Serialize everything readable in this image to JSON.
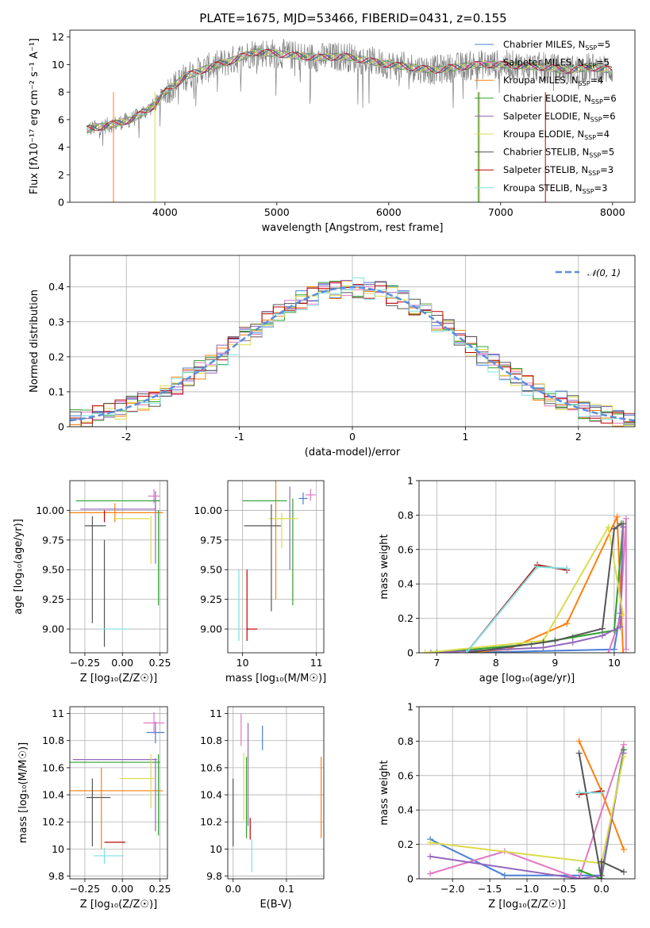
{
  "figure": {
    "title": "PLATE=1675, MJD=53466, FIBERID=0431, z=0.155"
  },
  "colors": {
    "Chabrier MILES": "#4a7fd4",
    "Salpeter MILES": "#e377c2",
    "Kroupa MILES": "#ff7f0e",
    "Chabrier ELODIE": "#2ca02c",
    "Salpeter ELODIE": "#9467bd",
    "Kroupa ELODIE": "#dbdb4d",
    "Chabrier STELIB": "#555555",
    "Salpeter STELIB": "#c00000",
    "Kroupa STELIB": "#7fdfdf",
    "data": "#808080",
    "gaussian": "#5b8dd9"
  },
  "chart_data": [
    {
      "id": "spectrum",
      "type": "line",
      "title": "PLATE=1675, MJD=53466, FIBERID=0431, z=0.155",
      "xlabel": "wavelength [Angstrom, rest frame]",
      "ylabel": "Flux [fλ10⁻¹⁷ erg cm⁻² s⁻¹ A⁻¹]",
      "xlim": [
        3150,
        8200
      ],
      "ylim": [
        0,
        12.5
      ],
      "xticks": [
        4000,
        5000,
        6000,
        7000,
        8000
      ],
      "yticks": [
        0,
        2,
        4,
        6,
        8,
        10,
        12
      ],
      "legend_position": "right",
      "legend": [
        "Chabrier MILES, N_SSP=5",
        "Salpeter MILES, N_SSP=5",
        "Kroupa MILES, N_SSP=4",
        "Chabrier ELODIE, N_SSP=6",
        "Salpeter ELODIE, N_SSP=6",
        "Kroupa ELODIE, N_SSP=4",
        "Chabrier STELIB, N_SSP=5",
        "Salpeter STELIB, N_SSP=3",
        "Kroupa STELIB, N_SSP=3"
      ],
      "continuum_x": [
        3300,
        3500,
        3700,
        3900,
        4000,
        4200,
        4400,
        4600,
        4800,
        5000,
        5200,
        5400,
        5600,
        5800,
        6000,
        6200,
        6400,
        6600,
        6800,
        7000,
        7200,
        7400,
        7600,
        7800,
        8000
      ],
      "continuum_y": [
        5.3,
        5.6,
        6.0,
        7.0,
        8.0,
        9.2,
        9.8,
        10.3,
        10.9,
        10.8,
        10.6,
        10.5,
        10.6,
        10.3,
        10.0,
        9.8,
        9.6,
        9.8,
        10.0,
        10.0,
        9.9,
        9.8,
        9.6,
        9.8,
        9.6
      ]
    },
    {
      "id": "residuals",
      "type": "area",
      "xlabel": "(data-model)/error",
      "ylabel": "Normed distribution",
      "xlim": [
        -2.5,
        2.5
      ],
      "ylim": [
        0,
        0.49
      ],
      "xticks": [
        -2,
        -1,
        0,
        1,
        2
      ],
      "yticks": [
        0.0,
        0.1,
        0.2,
        0.3,
        0.4
      ],
      "grid": true,
      "legend_position": "top-right",
      "gaussian_label": "𝒩(0, 1)",
      "bin_width": 0.1
    },
    {
      "id": "age-vs-Z",
      "type": "scatter",
      "xlabel": "Z [log₁₀(Z/Z☉)]",
      "ylabel": "age  [log₁₀(age/yr)]",
      "xlim": [
        -0.35,
        0.3
      ],
      "ylim": [
        8.8,
        10.25
      ],
      "xticks": [
        -0.25,
        0.0,
        0.25
      ],
      "xticklabels": [
        "−0.25",
        "0.00",
        "0.25"
      ],
      "yticks": [
        9.0,
        9.25,
        9.5,
        9.75,
        10.0
      ],
      "yticklabels": [
        "9.00",
        "9.25",
        "9.50",
        "9.75",
        "10.00"
      ],
      "grid": true,
      "points": [
        {
          "s": "Chabrier MILES",
          "x": 0.22,
          "y": 10.08,
          "xe": 0.03,
          "ye": 0.08
        },
        {
          "s": "Salpeter MILES",
          "x": 0.21,
          "y": 10.12,
          "xe": 0.04,
          "ye": 0.06
        },
        {
          "s": "Kroupa MILES",
          "x": -0.05,
          "y": 9.98,
          "xe": 0.32,
          "ye": 0.08
        },
        {
          "s": "Chabrier ELODIE",
          "x": -0.03,
          "y": 10.08,
          "xe": 0.28,
          "ye": 0.0
        },
        {
          "s": "Chabrier ELODIE",
          "x": 0.24,
          "y": 9.6,
          "xe": 0.0,
          "ye": 0.4
        },
        {
          "s": "Salpeter ELODIE",
          "x": -0.03,
          "y": 10.01,
          "xe": 0.25,
          "ye": 0.0
        },
        {
          "s": "Salpeter ELODIE",
          "x": 0.22,
          "y": 9.8,
          "xe": 0.0,
          "ye": 0.25
        },
        {
          "s": "Kroupa ELODIE",
          "x": 0.06,
          "y": 9.93,
          "xe": 0.12,
          "ye": 0.0
        },
        {
          "s": "Kroupa ELODIE",
          "x": 0.19,
          "y": 9.75,
          "xe": 0.0,
          "ye": 0.2
        },
        {
          "s": "Chabrier STELIB",
          "x": -0.18,
          "y": 9.87,
          "xe": 0.07,
          "ye": 0.0
        },
        {
          "s": "Chabrier STELIB",
          "x": -0.2,
          "y": 9.5,
          "xe": 0.0,
          "ye": 0.45
        },
        {
          "s": "Chabrier STELIB",
          "x": -0.12,
          "y": 9.3,
          "xe": 0.0,
          "ye": 0.45
        },
        {
          "s": "Salpeter STELIB",
          "x": -0.12,
          "y": 9.95,
          "xe": 0.0,
          "ye": 0.05
        },
        {
          "s": "Kroupa STELIB",
          "x": -0.05,
          "y": 9.0,
          "xe": 0.1,
          "ye": 0.0
        }
      ]
    },
    {
      "id": "age-vs-mass",
      "type": "scatter",
      "xlabel": "mass [log₁₀(M/M☉)]",
      "xlim": [
        9.8,
        11.1
      ],
      "ylim": [
        8.8,
        10.25
      ],
      "xticks": [
        10,
        11
      ],
      "yticks": [
        9.0,
        9.25,
        9.5,
        9.75,
        10.0
      ],
      "yticklabels": [
        "9.00",
        "9.25",
        "9.50",
        "9.75",
        "10.00"
      ],
      "grid": true,
      "points": [
        {
          "s": "Chabrier MILES",
          "x": 10.82,
          "y": 10.1,
          "xe": 0.06,
          "ye": 0.05
        },
        {
          "s": "Salpeter MILES",
          "x": 10.92,
          "y": 10.13,
          "xe": 0.07,
          "ye": 0.05
        },
        {
          "s": "Kroupa MILES",
          "x": 10.45,
          "y": 10.0,
          "xe": 0.0,
          "ye": 0.75
        },
        {
          "s": "Chabrier ELODIE",
          "x": 10.3,
          "y": 10.08,
          "xe": 0.3,
          "ye": 0.0
        },
        {
          "s": "Chabrier ELODIE",
          "x": 10.68,
          "y": 9.65,
          "xe": 0.0,
          "ye": 0.45
        },
        {
          "s": "Salpeter ELODIE",
          "x": 10.64,
          "y": 9.85,
          "xe": 0.0,
          "ye": 0.35
        },
        {
          "s": "Kroupa ELODIE",
          "x": 10.55,
          "y": 9.93,
          "xe": 0.2,
          "ye": 0.0
        },
        {
          "s": "Kroupa ELODIE",
          "x": 10.53,
          "y": 9.83,
          "xe": 0.0,
          "ye": 0.15
        },
        {
          "s": "Chabrier STELIB",
          "x": 10.27,
          "y": 9.87,
          "xe": 0.25,
          "ye": 0.0
        },
        {
          "s": "Chabrier STELIB",
          "x": 10.39,
          "y": 9.6,
          "xe": 0.0,
          "ye": 0.45
        },
        {
          "s": "Salpeter STELIB",
          "x": 10.06,
          "y": 9.2,
          "xe": 0.0,
          "ye": 0.3
        },
        {
          "s": "Salpeter STELIB",
          "x": 10.13,
          "y": 9.0,
          "xe": 0.07,
          "ye": 0.0
        },
        {
          "s": "Kroupa STELIB",
          "x": 9.95,
          "y": 9.2,
          "xe": 0.0,
          "ye": 0.3
        }
      ]
    },
    {
      "id": "weight-vs-age",
      "type": "line",
      "xlabel": "age  [log₁₀(age/yr)]",
      "ylabel": "mass weight",
      "xlim": [
        6.7,
        10.35
      ],
      "ylim": [
        0,
        1.0
      ],
      "xticks": [
        7,
        8,
        9,
        10
      ],
      "yticks": [
        0.0,
        0.2,
        0.4,
        0.6,
        0.8,
        1.0
      ],
      "grid": true,
      "series": [
        {
          "s": "Chabrier MILES",
          "x": [
            7.5,
            10.0,
            10.1,
            10.15
          ],
          "y": [
            0.0,
            0.02,
            0.23,
            0.75
          ]
        },
        {
          "s": "Salpeter MILES",
          "x": [
            9.9,
            10.1,
            10.2,
            10.2
          ],
          "y": [
            0.0,
            0.2,
            0.78,
            0.02
          ]
        },
        {
          "s": "Kroupa MILES",
          "x": [
            7.5,
            8.2,
            9.2,
            10.05,
            10.15
          ],
          "y": [
            0.0,
            0.02,
            0.17,
            0.79,
            0.0
          ]
        },
        {
          "s": "Chabrier ELODIE",
          "x": [
            7.0,
            8.6,
            9.3,
            10.0,
            10.15
          ],
          "y": [
            0.0,
            0.05,
            0.09,
            0.13,
            0.75
          ]
        },
        {
          "s": "Salpeter ELODIE",
          "x": [
            6.9,
            8.8,
            9.3,
            9.8,
            10.1,
            10.15
          ],
          "y": [
            0.0,
            0.03,
            0.06,
            0.1,
            0.15,
            0.73
          ]
        },
        {
          "s": "Kroupa ELODIE",
          "x": [
            6.8,
            8.8,
            9.9,
            10.15
          ],
          "y": [
            0.0,
            0.07,
            0.73,
            0.22
          ]
        },
        {
          "s": "Chabrier STELIB",
          "x": [
            7.5,
            8.8,
            9.0,
            9.8,
            10.0,
            10.12
          ],
          "y": [
            0.0,
            0.06,
            0.07,
            0.14,
            0.72,
            0.75
          ]
        },
        {
          "s": "Salpeter STELIB",
          "x": [
            7.5,
            8.7,
            9.2
          ],
          "y": [
            0.0,
            0.51,
            0.48
          ]
        },
        {
          "s": "Kroupa STELIB",
          "x": [
            7.5,
            8.7,
            9.2
          ],
          "y": [
            0.0,
            0.5,
            0.49
          ]
        }
      ]
    },
    {
      "id": "mass-vs-Z",
      "type": "scatter",
      "xlabel": "Z [log₁₀(Z/Z☉)]",
      "ylabel": "mass [log₁₀(M/M☉)]",
      "xlim": [
        -0.35,
        0.3
      ],
      "ylim": [
        9.78,
        11.05
      ],
      "xticks": [
        -0.25,
        0.0,
        0.25
      ],
      "xticklabels": [
        "−0.25",
        "0.00",
        "0.25"
      ],
      "yticks": [
        9.8,
        10.0,
        10.2,
        10.4,
        10.6,
        10.8,
        11.0
      ],
      "grid": true,
      "points": [
        {
          "s": "Chabrier MILES",
          "x": 0.22,
          "y": 10.86,
          "xe": 0.06,
          "ye": 0.08
        },
        {
          "s": "Salpeter MILES",
          "x": 0.21,
          "y": 10.93,
          "xe": 0.07,
          "ye": 0.08
        },
        {
          "s": "Kroupa MILES",
          "x": -0.05,
          "y": 10.43,
          "xe": 0.32,
          "ye": 0.0
        },
        {
          "s": "Kroupa MILES",
          "x": -0.14,
          "y": 10.3,
          "xe": 0.0,
          "ye": 0.3
        },
        {
          "s": "Chabrier ELODIE",
          "x": -0.05,
          "y": 10.64,
          "xe": 0.3,
          "ye": 0.0
        },
        {
          "s": "Chabrier ELODIE",
          "x": 0.24,
          "y": 10.4,
          "xe": 0.0,
          "ye": 0.3
        },
        {
          "s": "Salpeter ELODIE",
          "x": -0.05,
          "y": 10.66,
          "xe": 0.28,
          "ye": 0.0
        },
        {
          "s": "Salpeter ELODIE",
          "x": 0.22,
          "y": 10.4,
          "xe": 0.0,
          "ye": 0.27
        },
        {
          "s": "Kroupa ELODIE",
          "x": 0.1,
          "y": 10.52,
          "xe": 0.12,
          "ye": 0.0
        },
        {
          "s": "Kroupa ELODIE",
          "x": 0.19,
          "y": 10.5,
          "xe": 0.0,
          "ye": 0.2
        },
        {
          "s": "Chabrier STELIB",
          "x": -0.16,
          "y": 10.38,
          "xe": 0.08,
          "ye": 0.0
        },
        {
          "s": "Chabrier STELIB",
          "x": -0.2,
          "y": 10.27,
          "xe": 0.0,
          "ye": 0.25
        },
        {
          "s": "Salpeter STELIB",
          "x": -0.05,
          "y": 10.05,
          "xe": 0.07,
          "ye": 0.0
        },
        {
          "s": "Kroupa STELIB",
          "x": -0.09,
          "y": 9.95,
          "xe": 0.1,
          "ye": 0.0
        },
        {
          "s": "Kroupa STELIB",
          "x": -0.12,
          "y": 9.95,
          "xe": 0.0,
          "ye": 0.06
        }
      ]
    },
    {
      "id": "mass-vs-ebv",
      "type": "scatter",
      "xlabel": "E(B-V)",
      "xlim": [
        -0.01,
        0.17
      ],
      "ylim": [
        9.78,
        11.05
      ],
      "xticks": [
        0.0,
        0.1
      ],
      "xticklabels": [
        "0.0",
        "0.1"
      ],
      "yticks": [
        9.8,
        10.0,
        10.2,
        10.4,
        10.6,
        10.8,
        11.0
      ],
      "grid": true,
      "points": [
        {
          "s": "Chabrier MILES",
          "x": 0.055,
          "y": 10.82,
          "xe": 0.0,
          "ye": 0.09
        },
        {
          "s": "Salpeter MILES",
          "x": 0.015,
          "y": 10.88,
          "xe": 0.0,
          "ye": 0.12
        },
        {
          "s": "Kroupa MILES",
          "x": 0.165,
          "y": 10.38,
          "xe": 0.0,
          "ye": 0.3
        },
        {
          "s": "Chabrier ELODIE",
          "x": 0.025,
          "y": 10.38,
          "xe": 0.0,
          "ye": 0.3
        },
        {
          "s": "Salpeter ELODIE",
          "x": 0.028,
          "y": 10.55,
          "xe": 0.0,
          "ye": 0.38
        },
        {
          "s": "Kroupa ELODIE",
          "x": 0.02,
          "y": 10.46,
          "xe": 0.0,
          "ye": 0.25
        },
        {
          "s": "Chabrier STELIB",
          "x": 0.0,
          "y": 10.27,
          "xe": 0.0,
          "ye": 0.25
        },
        {
          "s": "Salpeter STELIB",
          "x": 0.032,
          "y": 10.15,
          "xe": 0.0,
          "ye": 0.08
        },
        {
          "s": "Kroupa STELIB",
          "x": 0.035,
          "y": 9.95,
          "xe": 0.0,
          "ye": 0.12
        }
      ]
    },
    {
      "id": "weight-vs-Z",
      "type": "line",
      "xlabel": "Z [log₁₀(Z/Z☉)]",
      "ylabel": "mass weight",
      "xlim": [
        -2.45,
        0.45
      ],
      "ylim": [
        0,
        1.0
      ],
      "xticks": [
        -2.0,
        -1.5,
        -1.0,
        -0.5,
        0.0
      ],
      "xticklabels": [
        "−2.0",
        "−1.5",
        "−1.0",
        "−0.5",
        "0.0"
      ],
      "yticks": [
        0.0,
        0.2,
        0.4,
        0.6,
        0.8,
        1.0
      ],
      "grid": true,
      "series": [
        {
          "s": "Chabrier MILES",
          "x": [
            -2.3,
            -1.3,
            0.0,
            0.3
          ],
          "y": [
            0.23,
            0.02,
            0.02,
            0.75
          ]
        },
        {
          "s": "Salpeter MILES",
          "x": [
            -2.3,
            -1.3,
            -0.3,
            0.3
          ],
          "y": [
            0.03,
            0.16,
            0.0,
            0.78
          ]
        },
        {
          "s": "Kroupa MILES",
          "x": [
            -0.3,
            0.0,
            0.3
          ],
          "y": [
            0.8,
            0.51,
            0.17
          ]
        },
        {
          "s": "Chabrier ELODIE",
          "x": [
            -0.3,
            0.0,
            0.3
          ],
          "y": [
            0.05,
            0.0,
            0.75
          ]
        },
        {
          "s": "Salpeter ELODIE",
          "x": [
            -2.3,
            -0.3,
            0.0,
            0.3
          ],
          "y": [
            0.13,
            0.0,
            0.02,
            0.73
          ]
        },
        {
          "s": "Kroupa ELODIE",
          "x": [
            -2.3,
            0.0,
            0.3
          ],
          "y": [
            0.21,
            0.09,
            0.71
          ]
        },
        {
          "s": "Chabrier STELIB",
          "x": [
            -0.3,
            0.0,
            0.0,
            0.3
          ],
          "y": [
            0.73,
            0.0,
            0.1,
            0.04
          ]
        },
        {
          "s": "Salpeter STELIB",
          "x": [
            -0.3,
            0.0
          ],
          "y": [
            0.49,
            0.51
          ]
        },
        {
          "s": "Kroupa STELIB",
          "x": [
            -0.3,
            0.0
          ],
          "y": [
            0.5,
            0.5
          ]
        }
      ]
    }
  ]
}
